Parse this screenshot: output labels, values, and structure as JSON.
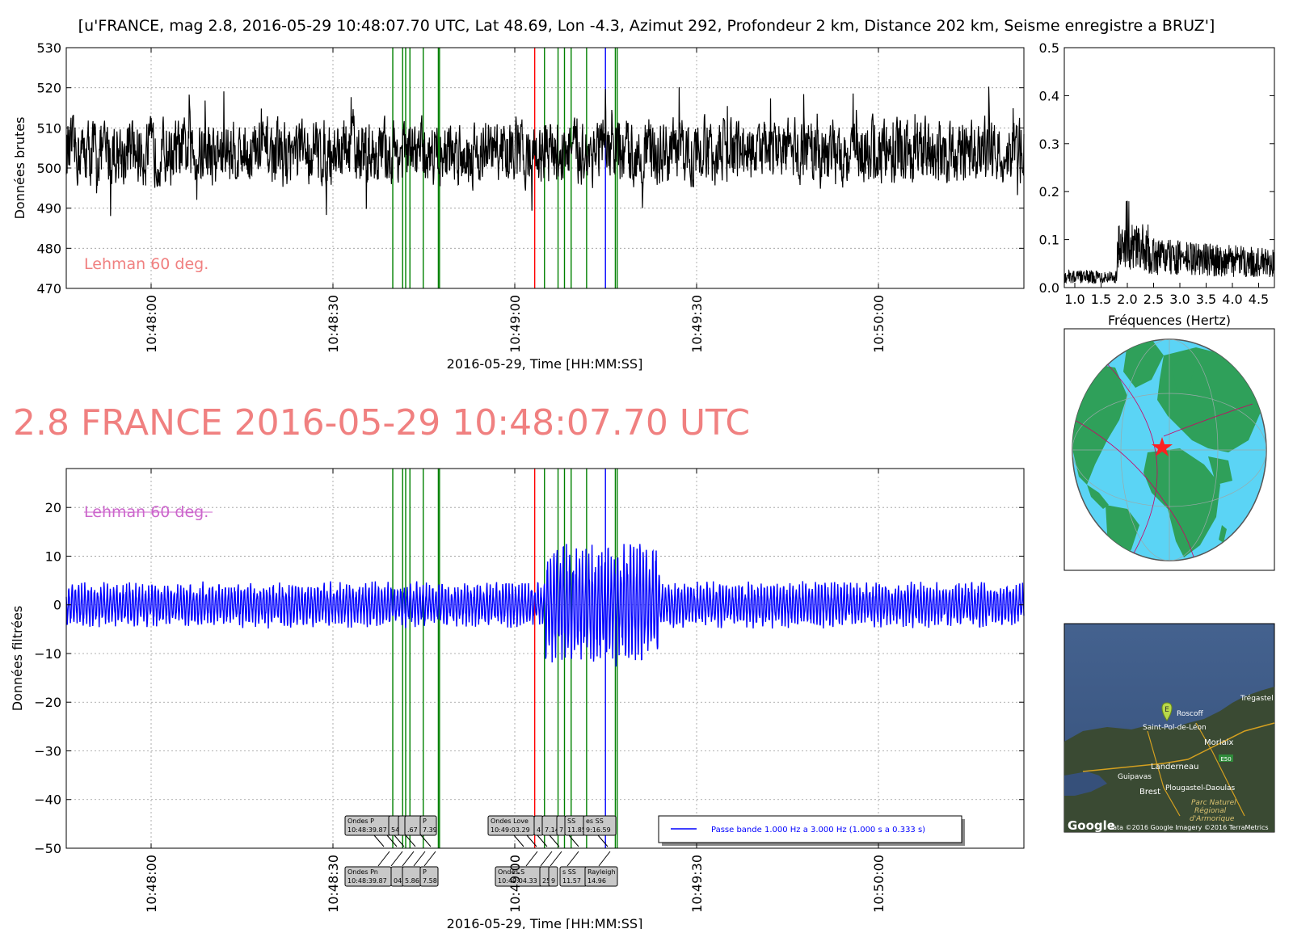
{
  "figure_title": "[u'FRANCE, mag 2.8, 2016-05-29 10:48:07.70 UTC, Lat 48.69, Lon -4.3, Azimut 292, Profondeur 2 km, Distance   202 km, Seisme enregistre a BRUZ']",
  "big_title": "2.8 FRANCE 2016-05-29 10:48:07.70 UTC",
  "colors": {
    "raw_trace": "#000000",
    "filtered_trace": "#0000ff",
    "green_marker": "#008000",
    "red_marker": "#ff0000",
    "blue_marker": "#0000ff",
    "lehman_top": "#f08080",
    "lehman_bottom": "#cc66cc",
    "big_title": "#f08080",
    "ocean": "#5bd4f5",
    "land": "#2fa05a"
  },
  "chart_data": [
    {
      "id": "raw",
      "type": "line",
      "title": "",
      "xlabel": "2016-05-29, Time [HH:MM:SS]",
      "ylabel": "Données brutes",
      "xlim": [
        "10:47:46",
        "10:50:24"
      ],
      "ylim": [
        470,
        530
      ],
      "yticks": [
        "470",
        "480",
        "490",
        "500",
        "510",
        "520",
        "530"
      ],
      "xticks": [
        "10:48:00",
        "10:48:30",
        "10:49:00",
        "10:49:30",
        "10:50:00"
      ],
      "grid": true,
      "annotation": "Lehman 60 deg.",
      "series": [
        {
          "mean": 504,
          "noise_amplitude": 7,
          "range_observed": [
            487,
            523
          ],
          "color": "#000000"
        }
      ]
    },
    {
      "id": "spectrum",
      "type": "line",
      "title": "",
      "xlabel": "Fréquences (Hertz)",
      "ylabel": "",
      "xlim": [
        0.8,
        4.8
      ],
      "ylim": [
        0.0,
        0.5
      ],
      "xticks": [
        "1.0",
        "1.5",
        "2.0",
        "2.5",
        "3.0",
        "3.5",
        "4.0",
        "4.5"
      ],
      "yticks": [
        "0.0",
        "0.1",
        "0.2",
        "0.3",
        "0.4",
        "0.5"
      ],
      "grid": false,
      "series": [
        {
          "peak_frequency": 2.0,
          "peak_amplitude": 0.18,
          "baseline_amplitude": 0.03
        }
      ]
    },
    {
      "id": "filtered",
      "type": "line",
      "title": "",
      "xlabel": "2016-05-29, Time [HH:MM:SS]",
      "ylabel": "Données filtrées",
      "xlim": [
        "10:47:46",
        "10:50:24"
      ],
      "ylim": [
        -50,
        28
      ],
      "yticks": [
        "−50",
        "−40",
        "−30",
        "−20",
        "−10",
        "0",
        "10",
        "20"
      ],
      "xticks": [
        "10:48:00",
        "10:48:30",
        "10:49:00",
        "10:49:30",
        "10:50:00"
      ],
      "grid": true,
      "annotation": "Lehman 60 deg.",
      "legend": {
        "label": "Passe bande 1.000 Hz a 3.000 Hz (1.000 s a 0.333 s)",
        "placement": "lower-right"
      },
      "series": [
        {
          "name": "Passe bande 1.000 Hz a 3.000 Hz (1.000 s a 0.333 s)",
          "noise_amplitude": 3.5,
          "max": 12.5,
          "min": -13,
          "burst": [
            "10:49:05",
            "10:49:20"
          ]
        }
      ]
    }
  ],
  "markers": {
    "green": [
      "10:48:39.87",
      "10:48:41.5",
      "10:48:42.0",
      "10:48:42.7",
      "10:48:44.9",
      "10:48:47.39",
      "10:48:47.58",
      "10:49:04.9",
      "10:49:07.14",
      "10:49:08.2",
      "10:49:09.3",
      "10:49:11.85",
      "10:49:16.59",
      "10:49:16.9"
    ],
    "red": [
      "10:49:03.29"
    ],
    "blue": [
      "10:49:14.96"
    ]
  },
  "phase_labels_top": [
    {
      "lines": [
        "Ondes P",
        "10:48:39.87"
      ]
    },
    {
      "lines": [
        "",
        "54.9"
      ]
    },
    {
      "lines": [
        "",
        ""
      ]
    },
    {
      "lines": [
        "",
        ".67"
      ]
    },
    {
      "lines": [
        "P",
        "7.39"
      ]
    },
    {
      "lines": [
        "Ondes Love",
        "10:49:03.29"
      ]
    },
    {
      "lines": [
        "",
        "4"
      ]
    },
    {
      "lines": [
        "",
        "7.14"
      ]
    },
    {
      "lines": [
        "",
        "7"
      ]
    },
    {
      "lines": [
        "SS",
        "11.85"
      ]
    },
    {
      "lines": [
        "es SS",
        "9:16.59"
      ]
    }
  ],
  "phase_labels_bottom": [
    {
      "lines": [
        "Ondes Pn",
        "10:48:39.87"
      ]
    },
    {
      "lines": [
        "",
        "04"
      ]
    },
    {
      "lines": [
        "",
        "5.86"
      ]
    },
    {
      "lines": [
        "P",
        "7.58"
      ]
    },
    {
      "lines": [
        "Ondes S",
        "10:49:04.33"
      ]
    },
    {
      "lines": [
        "",
        "25"
      ]
    },
    {
      "lines": [
        "",
        "9"
      ]
    },
    {
      "lines": [
        "s SS",
        "11.57"
      ]
    },
    {
      "lines": [
        "Rayleigh",
        "14.96"
      ]
    }
  ],
  "map_labels": [
    "Trégastel",
    "Roscoff",
    "Saint-Pol-de-Léon",
    "Morlaix",
    "Landerneau",
    "Guipavas",
    "Brest",
    "Plougastel-Daoulas",
    "Parc Naturel",
    "Régional",
    "d'Armorique",
    "E50",
    "E"
  ],
  "map_attribution": "data ©2016 Google  Imagery ©2016 TerraMetrics",
  "map_brand": "Google",
  "icons": {
    "epicenter": "red-star-icon",
    "map_pin": "map-pin-icon"
  }
}
